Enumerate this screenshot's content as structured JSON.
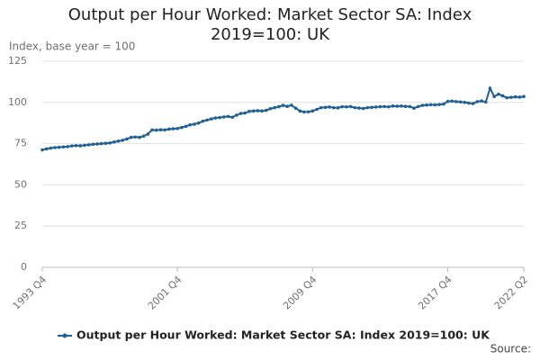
{
  "chart_data": {
    "type": "line",
    "title": "Output per Hour Worked: Market Sector SA: Index 2019=100: UK",
    "y_label": "Index, base year = 100",
    "source": "Source:",
    "categories": [
      "1993 Q4",
      null,
      null,
      null,
      null,
      null,
      null,
      null,
      null,
      null,
      null,
      null,
      null,
      null,
      null,
      null,
      null,
      null,
      null,
      null,
      null,
      null,
      null,
      null,
      null,
      null,
      null,
      null,
      null,
      null,
      null,
      null,
      "2001 Q4",
      null,
      null,
      null,
      null,
      null,
      null,
      null,
      null,
      null,
      null,
      null,
      null,
      null,
      null,
      null,
      null,
      null,
      null,
      null,
      null,
      null,
      null,
      null,
      null,
      null,
      null,
      null,
      null,
      null,
      null,
      null,
      "2009 Q4",
      null,
      null,
      null,
      null,
      null,
      null,
      null,
      null,
      null,
      null,
      null,
      null,
      null,
      null,
      null,
      null,
      null,
      null,
      null,
      null,
      null,
      null,
      null,
      null,
      null,
      null,
      null,
      null,
      null,
      null,
      null,
      "2017 Q4",
      null,
      null,
      null,
      null,
      null,
      null,
      null,
      null,
      null,
      null,
      null,
      null,
      null,
      null,
      null,
      null,
      null,
      "2022 Q2"
    ],
    "series": [
      {
        "name": "Output per Hour Worked: Market Sector SA: Index 2019=100: UK",
        "color": "#206095",
        "values": [
          71.2,
          71.8,
          72.3,
          72.6,
          72.8,
          73.0,
          73.2,
          73.6,
          73.8,
          73.7,
          74.0,
          74.3,
          74.6,
          74.8,
          75.0,
          75.2,
          75.4,
          76.0,
          76.5,
          77.0,
          77.8,
          78.8,
          79.0,
          78.8,
          79.6,
          80.8,
          83.3,
          83.2,
          83.4,
          83.3,
          83.8,
          84.0,
          84.2,
          84.8,
          85.5,
          86.4,
          86.8,
          87.5,
          88.6,
          89.3,
          90.0,
          90.6,
          90.8,
          91.2,
          91.5,
          91.0,
          92.3,
          93.3,
          93.6,
          94.6,
          94.8,
          95.0,
          94.8,
          95.2,
          96.2,
          96.8,
          97.4,
          98.2,
          97.6,
          98.3,
          96.5,
          94.8,
          94.2,
          94.3,
          94.8,
          95.8,
          96.8,
          97.0,
          97.2,
          96.8,
          96.7,
          97.4,
          97.3,
          97.5,
          96.8,
          96.6,
          96.3,
          96.8,
          97.0,
          97.2,
          97.4,
          97.5,
          97.3,
          97.8,
          97.7,
          97.8,
          97.6,
          97.5,
          96.5,
          97.5,
          98.2,
          98.4,
          98.6,
          98.5,
          98.7,
          99.0,
          100.6,
          100.8,
          100.5,
          100.3,
          100.0,
          99.6,
          99.3,
          100.5,
          100.9,
          100.2,
          108.6,
          103.6,
          105.0,
          104.0,
          102.8,
          103.1,
          103.4,
          103.2,
          103.6
        ]
      }
    ],
    "ylim": [
      0,
      125
    ],
    "yticks": [
      0,
      25,
      50,
      75,
      100,
      125
    ],
    "grid": true
  }
}
